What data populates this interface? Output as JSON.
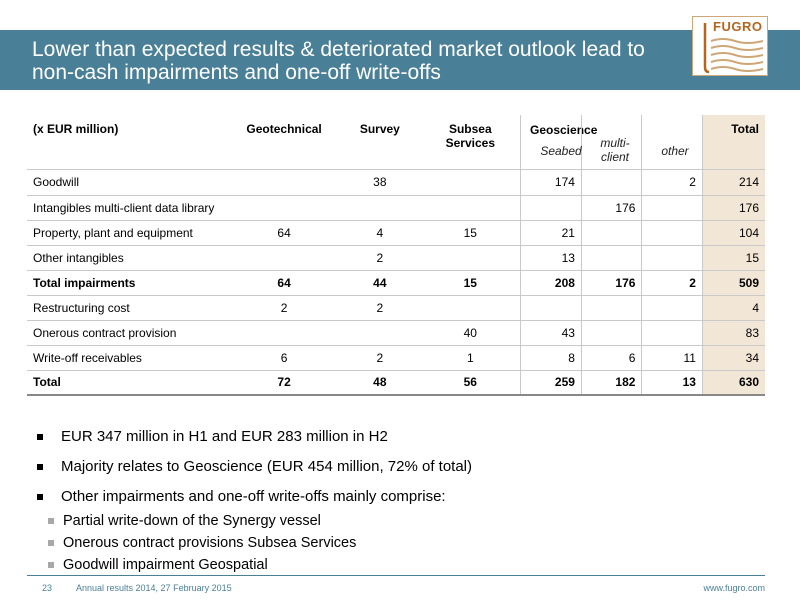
{
  "slide": {
    "title_lines": [
      "Lower than expected results & deteriorated market outlook lead to",
      "non-cash impairments and one-off write-offs"
    ],
    "logo_text": "FUGRO",
    "colors": {
      "title_bar": "#4a7f98",
      "total_col": "#f2e7d6",
      "logo": "#b5651d"
    }
  },
  "table": {
    "headers": {
      "label": "(x EUR million)",
      "geotechnical": "Geotechnical",
      "survey": "Survey",
      "subsea": "Subsea Services",
      "geoscience": "Geoscience",
      "seabed": "Seabed",
      "multiclient": "multi-client",
      "other": "other",
      "total": "Total"
    },
    "rows": [
      {
        "label": "Goodwill",
        "geo": "",
        "survey": "38",
        "subsea": "",
        "seabed": "174",
        "mc": "",
        "other": "2",
        "total": "214"
      },
      {
        "label": "Intangibles multi-client data library",
        "geo": "",
        "survey": "",
        "subsea": "",
        "seabed": "",
        "mc": "176",
        "other": "",
        "total": "176"
      },
      {
        "label": "Property, plant and equipment",
        "geo": "64",
        "survey": "4",
        "subsea": "15",
        "seabed": "21",
        "mc": "",
        "other": "",
        "total": "104"
      },
      {
        "label": "Other intangibles",
        "geo": "",
        "survey": "2",
        "subsea": "",
        "seabed": "13",
        "mc": "",
        "other": "",
        "total": "15"
      },
      {
        "label": "Total impairments",
        "geo": "64",
        "survey": "44",
        "subsea": "15",
        "seabed": "208",
        "mc": "176",
        "other": "2",
        "total": "509"
      },
      {
        "label": "Restructuring cost",
        "geo": "2",
        "survey": "2",
        "subsea": "",
        "seabed": "",
        "mc": "",
        "other": "",
        "total": "4"
      },
      {
        "label": "Onerous contract provision",
        "geo": "",
        "survey": "",
        "subsea": "40",
        "seabed": "43",
        "mc": "",
        "other": "",
        "total": "83"
      },
      {
        "label": "Write-off receivables",
        "geo": "6",
        "survey": "2",
        "subsea": "1",
        "seabed": "8",
        "mc": "6",
        "other": "11",
        "total": "34"
      },
      {
        "label": "Total",
        "geo": "72",
        "survey": "48",
        "subsea": "56",
        "seabed": "259",
        "mc": "182",
        "other": "13",
        "total": "630"
      }
    ]
  },
  "bullets": [
    "EUR 347 million in H1 and EUR 283 million in H2",
    "Majority relates to Geoscience (EUR 454 million, 72% of total)",
    "Other impairments and one-off write-offs mainly comprise:"
  ],
  "sub_bullets": [
    "Partial write-down of the Synergy vessel",
    "Onerous contract provisions Subsea Services",
    "Goodwill impairment Geospatial"
  ],
  "footer": {
    "page": "23",
    "text": "Annual results 2014, 27 February 2015",
    "url": "www.fugro.com"
  }
}
